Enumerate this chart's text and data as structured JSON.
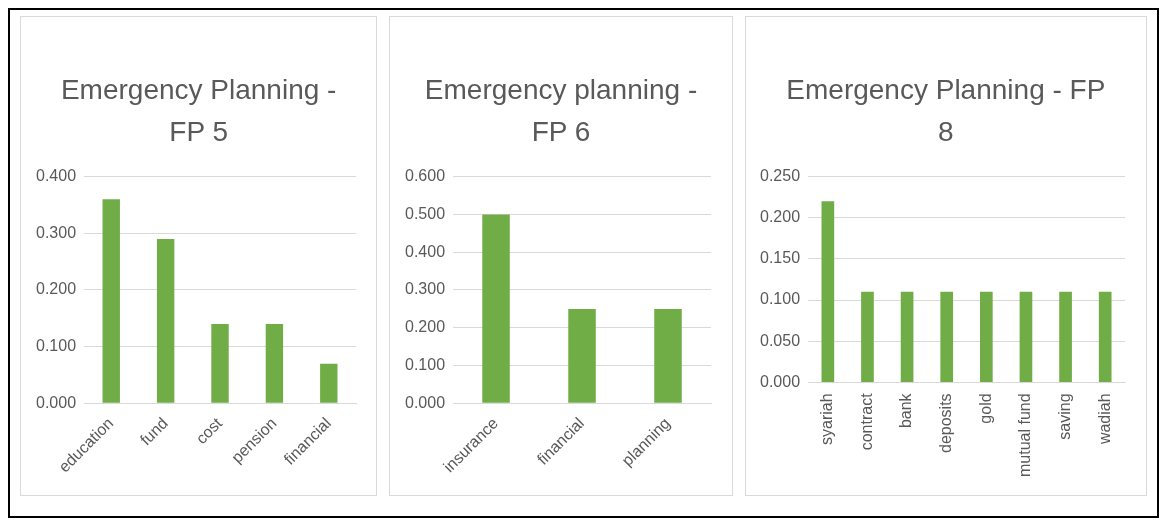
{
  "chart_data": [
    {
      "type": "bar",
      "title": "Emergency Planning - FP 5",
      "categories": [
        "education",
        "fund",
        "cost",
        "pension",
        "financial"
      ],
      "values": [
        0.36,
        0.29,
        0.14,
        0.14,
        0.07
      ],
      "color": "#70ad47",
      "ylim": [
        0,
        0.4
      ],
      "yticks": [
        {
          "value": 0,
          "label": "0.000"
        },
        {
          "value": 0.1,
          "label": "0.100"
        },
        {
          "value": 0.2,
          "label": "0.200"
        },
        {
          "value": 0.3,
          "label": "0.300"
        },
        {
          "value": 0.4,
          "label": "0.400"
        }
      ],
      "grid": "y",
      "legend": false
    },
    {
      "type": "bar",
      "title": "Emergency planning - FP 6",
      "categories": [
        "insurance",
        "financial",
        "planning"
      ],
      "values": [
        0.5,
        0.25,
        0.25
      ],
      "color": "#70ad47",
      "ylim": [
        0,
        0.6
      ],
      "yticks": [
        {
          "value": 0,
          "label": "0.000"
        },
        {
          "value": 0.1,
          "label": "0.100"
        },
        {
          "value": 0.2,
          "label": "0.200"
        },
        {
          "value": 0.3,
          "label": "0.300"
        },
        {
          "value": 0.4,
          "label": "0.400"
        },
        {
          "value": 0.5,
          "label": "0.500"
        },
        {
          "value": 0.6,
          "label": "0.600"
        }
      ],
      "grid": "y",
      "legend": false
    },
    {
      "type": "bar",
      "title": "Emergency Planning - FP 8",
      "categories": [
        "syariah",
        "contract",
        "bank",
        "deposits",
        "gold",
        "mutual fund",
        "saving",
        "wadiah"
      ],
      "values": [
        0.22,
        0.11,
        0.11,
        0.11,
        0.11,
        0.11,
        0.11,
        0.11
      ],
      "color": "#70ad47",
      "ylim": [
        0,
        0.25
      ],
      "yticks": [
        {
          "value": 0,
          "label": "0.000"
        },
        {
          "value": 0.05,
          "label": "0.050"
        },
        {
          "value": 0.1,
          "label": "0.100"
        },
        {
          "value": 0.15,
          "label": "0.150"
        },
        {
          "value": 0.2,
          "label": "0.200"
        },
        {
          "value": 0.25,
          "label": "0.250"
        }
      ],
      "grid": "y",
      "legend": false
    }
  ]
}
